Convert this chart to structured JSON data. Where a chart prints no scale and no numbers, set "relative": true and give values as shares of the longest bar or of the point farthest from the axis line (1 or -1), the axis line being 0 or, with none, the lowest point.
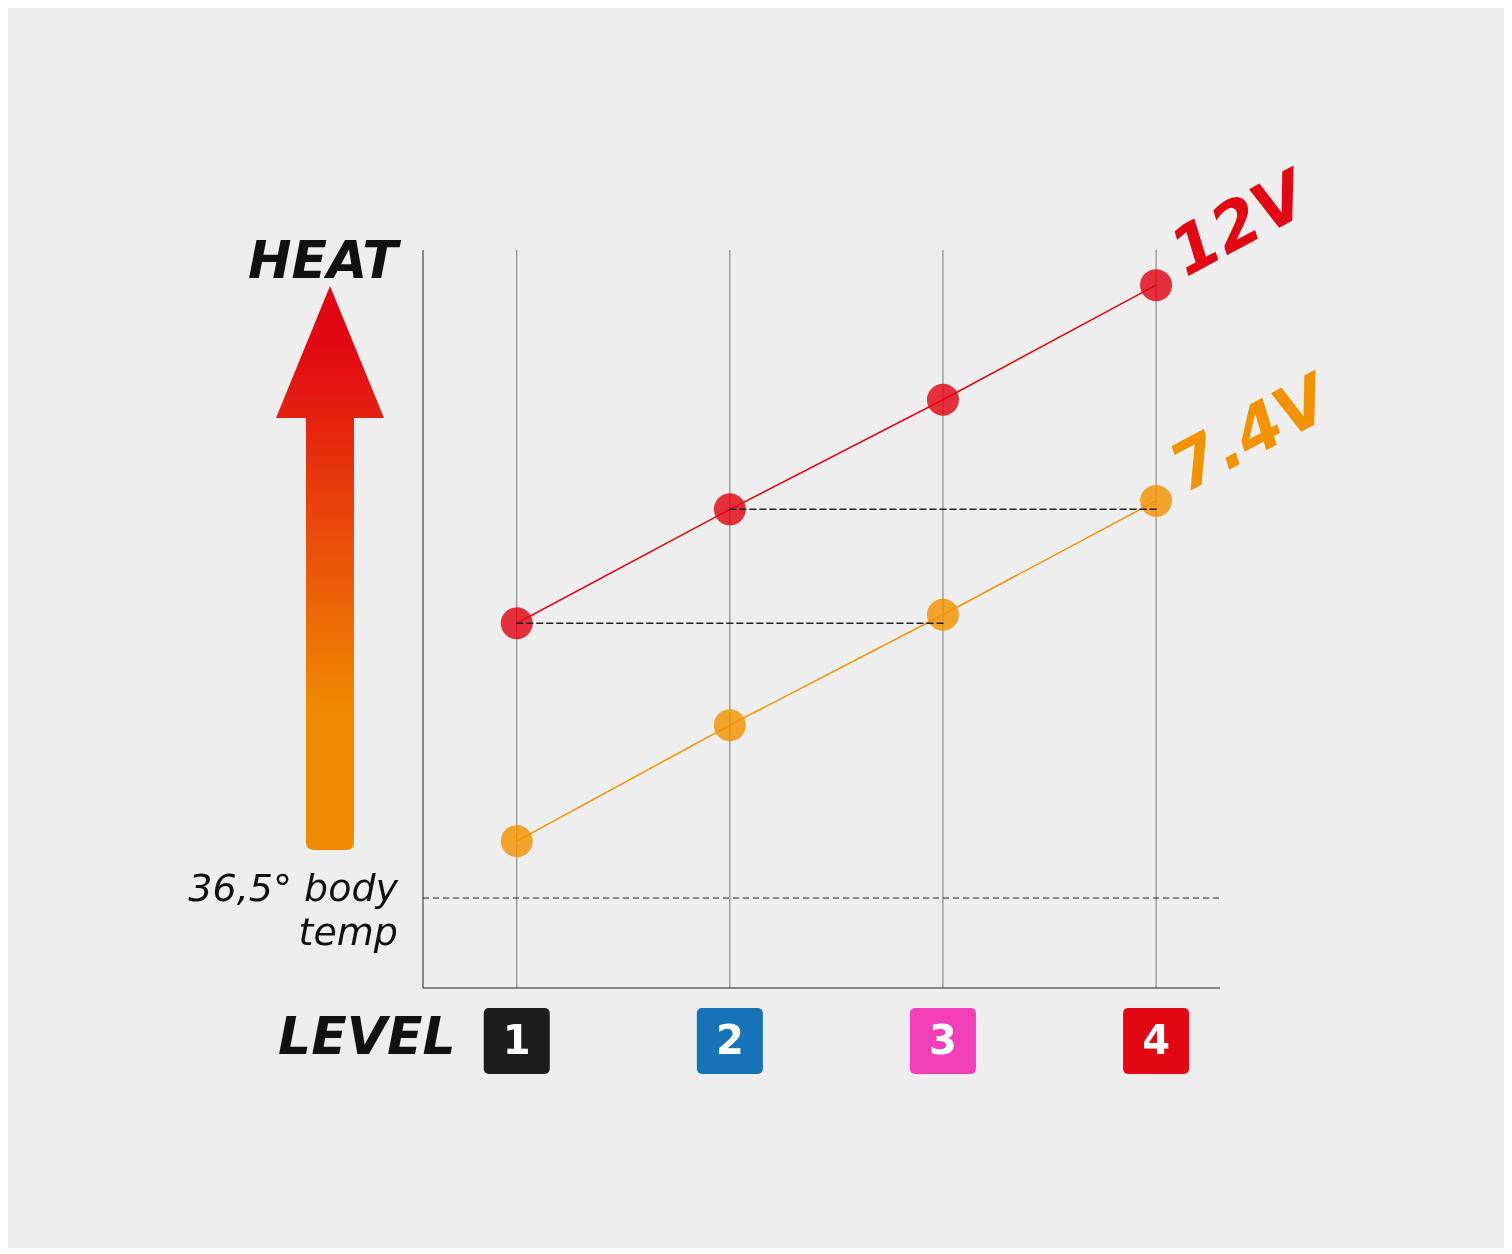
{
  "chart_data": {
    "type": "line",
    "relative": true,
    "ylabel": "HEAT",
    "xlabel": "LEVEL",
    "categories": [
      "1",
      "2",
      "3",
      "4"
    ],
    "series": [
      {
        "name": "12V",
        "color": "#e30613",
        "values": [
          0.519,
          0.681,
          0.837,
          1
        ]
      },
      {
        "name": "7.4V",
        "color": "#f39200",
        "values": [
          0.209,
          0.374,
          0.531,
          0.693
        ]
      },
      {
        "color": "#222222",
        "values": [
          0.519,
          0.519,
          0.519,
          null
        ],
        "line_style": "dashed",
        "marker": "none"
      },
      {
        "color": "#222222",
        "values": [
          null,
          0.681,
          0.681,
          0.681
        ],
        "line_style": "dashed",
        "marker": "none"
      }
    ],
    "ref_lines": [
      {
        "axis": "y",
        "value": 0.128,
        "label": "36,5° body temp",
        "line_style": "dashed",
        "color": "#222222"
      }
    ],
    "marker": "circle",
    "line_style": "solid",
    "grid": "x",
    "legend": false
  }
}
